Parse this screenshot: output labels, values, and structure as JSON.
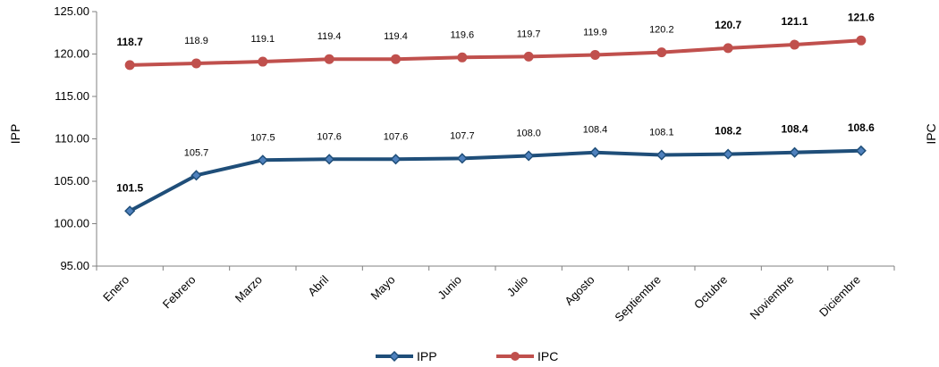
{
  "chart_data": {
    "type": "line",
    "ylabel_left": "IPP",
    "ylabel_right": "IPC",
    "ylim": [
      95,
      125
    ],
    "yticks": [
      "125.00",
      "120.00",
      "115.00",
      "110.00",
      "105.00",
      "100.00",
      "95.00"
    ],
    "ytick_values": [
      125,
      120,
      115,
      110,
      105,
      100,
      95
    ],
    "categories": [
      "Enero",
      "Febrero",
      "Marzo",
      "Abril",
      "Mayo",
      "Junio",
      "Julio",
      "Agosto",
      "Septiembre",
      "Octubre",
      "Noviembre",
      "Diciembre"
    ],
    "series": [
      {
        "name": "IPP",
        "color": "#1F4E79",
        "marker": "diamond",
        "values": [
          101.5,
          105.7,
          107.5,
          107.6,
          107.6,
          107.7,
          108.0,
          108.4,
          108.1,
          108.2,
          108.4,
          108.6
        ],
        "labels": [
          "101.5",
          "105.7",
          "107.5",
          "107.6",
          "107.6",
          "107.7",
          "108.0",
          "108.4",
          "108.1",
          "108.2",
          "108.4",
          "108.6"
        ],
        "bold": [
          true,
          false,
          false,
          false,
          false,
          false,
          false,
          false,
          false,
          true,
          true,
          true
        ]
      },
      {
        "name": "IPC",
        "color": "#C0504D",
        "marker": "circle",
        "values": [
          118.7,
          118.9,
          119.1,
          119.4,
          119.4,
          119.6,
          119.7,
          119.9,
          120.2,
          120.7,
          121.1,
          121.6
        ],
        "labels": [
          "118.7",
          "118.9",
          "119.1",
          "119.4",
          "119.4",
          "119.6",
          "119.7",
          "119.9",
          "120.2",
          "120.7",
          "121.1",
          "121.6"
        ],
        "bold": [
          true,
          false,
          false,
          false,
          false,
          false,
          false,
          false,
          false,
          true,
          true,
          true
        ]
      }
    ],
    "legend_position": "bottom",
    "grid": false
  }
}
